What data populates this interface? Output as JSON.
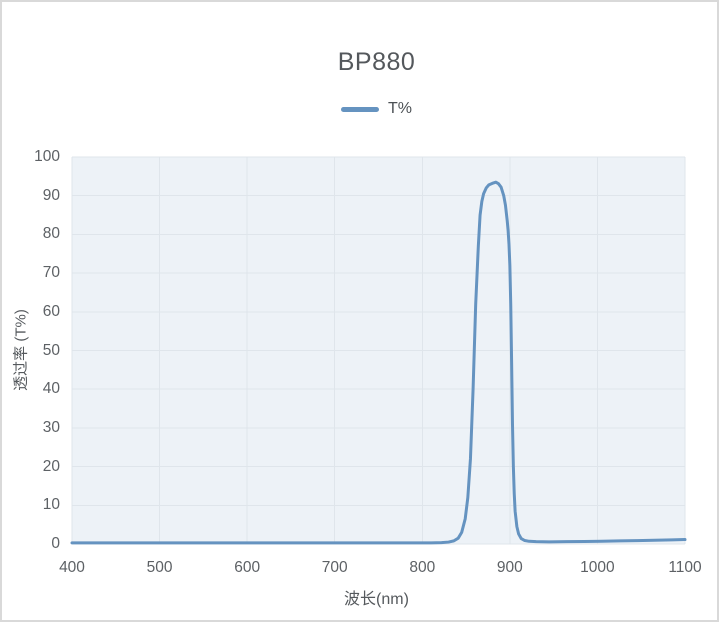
{
  "colors": {
    "line": "#6593c0",
    "plot_bg": "#edf2f7",
    "grid": "#dfe5eb",
    "axis_text": "#5d6165",
    "title_text": "#54585c",
    "page_border": "#d9d9d9"
  },
  "chart_data": {
    "type": "line",
    "title": "BP880",
    "xlabel": "波长(nm)",
    "ylabel": "透过率 (T%)",
    "xlim": [
      400,
      1100
    ],
    "ylim": [
      0,
      100
    ],
    "x_ticks": [
      400,
      500,
      600,
      700,
      800,
      900,
      1000,
      1100
    ],
    "y_ticks": [
      0,
      10,
      20,
      30,
      40,
      50,
      60,
      70,
      80,
      90,
      100
    ],
    "grid": true,
    "legend": {
      "position": "top",
      "entries": [
        "T%"
      ]
    },
    "series": [
      {
        "name": "T%",
        "color": "#6593c0",
        "points": [
          [
            400,
            0.3
          ],
          [
            450,
            0.3
          ],
          [
            500,
            0.3
          ],
          [
            550,
            0.3
          ],
          [
            600,
            0.3
          ],
          [
            650,
            0.3
          ],
          [
            700,
            0.3
          ],
          [
            750,
            0.3
          ],
          [
            790,
            0.3
          ],
          [
            810,
            0.3
          ],
          [
            822,
            0.35
          ],
          [
            830,
            0.5
          ],
          [
            836,
            0.8
          ],
          [
            841,
            1.5
          ],
          [
            845,
            3
          ],
          [
            849,
            6.5
          ],
          [
            852,
            12
          ],
          [
            855,
            22
          ],
          [
            858,
            40
          ],
          [
            861,
            62
          ],
          [
            864,
            77
          ],
          [
            866,
            85
          ],
          [
            868,
            88.5
          ],
          [
            870,
            90.5
          ],
          [
            873,
            92
          ],
          [
            876,
            92.8
          ],
          [
            880,
            93.2
          ],
          [
            884,
            93.5
          ],
          [
            887,
            93.1
          ],
          [
            890,
            92.2
          ],
          [
            893,
            90
          ],
          [
            895,
            87.5
          ],
          [
            896,
            85.5
          ],
          [
            897,
            83.5
          ],
          [
            898,
            81
          ],
          [
            899,
            77.5
          ],
          [
            900,
            72
          ],
          [
            901,
            62
          ],
          [
            902,
            47
          ],
          [
            903,
            31
          ],
          [
            904,
            20
          ],
          [
            905,
            13
          ],
          [
            906,
            8.5
          ],
          [
            908,
            4.5
          ],
          [
            910,
            2.6
          ],
          [
            913,
            1.4
          ],
          [
            917,
            0.9
          ],
          [
            922,
            0.7
          ],
          [
            930,
            0.6
          ],
          [
            945,
            0.55
          ],
          [
            965,
            0.6
          ],
          [
            985,
            0.65
          ],
          [
            1005,
            0.72
          ],
          [
            1025,
            0.8
          ],
          [
            1045,
            0.88
          ],
          [
            1065,
            0.97
          ],
          [
            1085,
            1.06
          ],
          [
            1100,
            1.15
          ]
        ]
      }
    ]
  }
}
